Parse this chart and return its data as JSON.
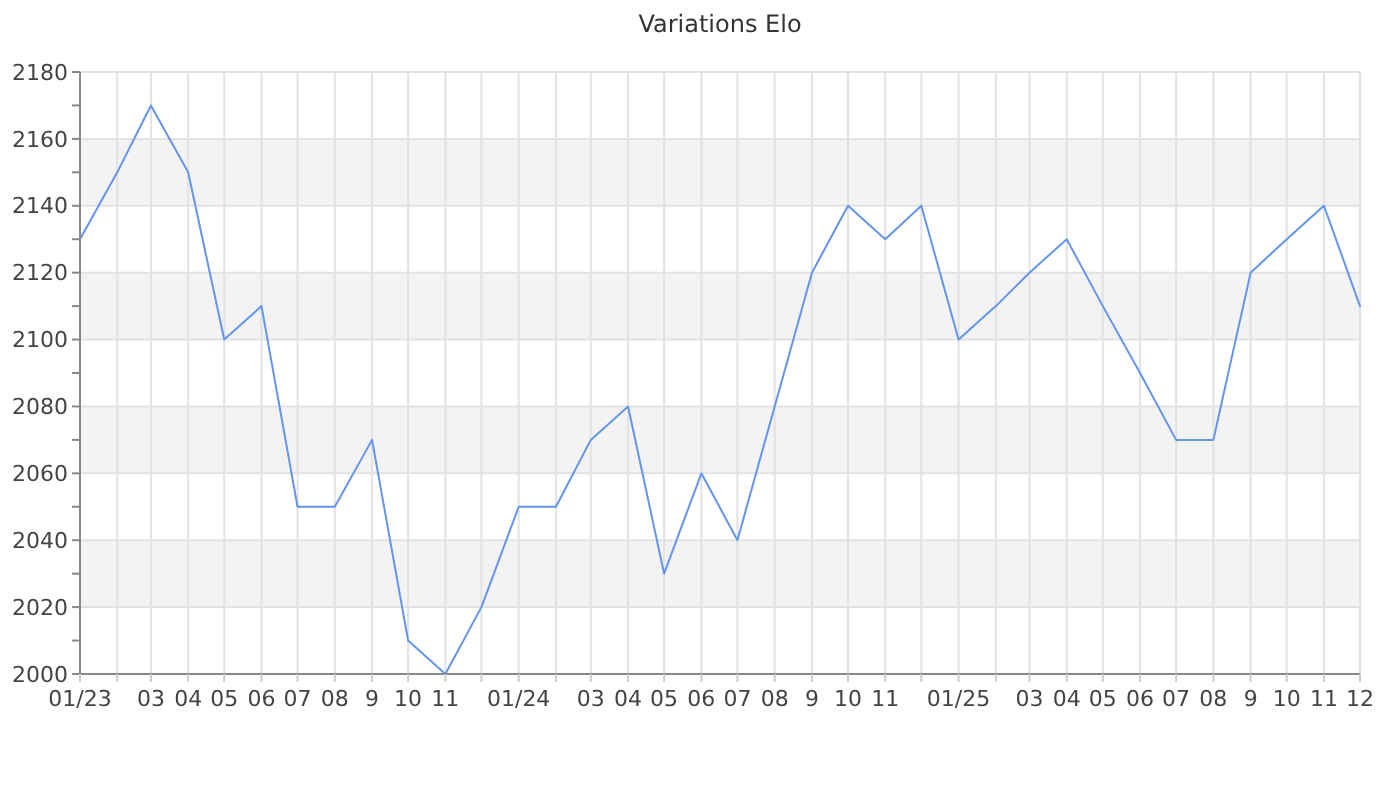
{
  "chart_data": {
    "type": "line",
    "title": "Variations Elo",
    "x": [
      "2023-01",
      "2023-02",
      "2023-03",
      "2023-04",
      "2023-05",
      "2023-06",
      "2023-07",
      "2023-08",
      "2023-09",
      "2023-10",
      "2023-11",
      "2023-12",
      "2024-01",
      "2024-02",
      "2024-03",
      "2024-04",
      "2024-05",
      "2024-06",
      "2024-07",
      "2024-08",
      "2024-09",
      "2024-10",
      "2024-11",
      "2024-12",
      "2025-01",
      "2025-02",
      "2025-03",
      "2025-04",
      "2025-05",
      "2025-06",
      "2025-07",
      "2025-08",
      "2025-09",
      "2025-10",
      "2025-11",
      "2025-12"
    ],
    "series": [
      {
        "color": "#6495ed",
        "values": [
          2130,
          2150,
          2170,
          2150,
          2100,
          2110,
          2050,
          2050,
          2070,
          2010,
          2000,
          2020,
          2050,
          2050,
          2070,
          2080,
          2030,
          2060,
          2040,
          2080,
          2120,
          2140,
          2130,
          2140,
          2100,
          2110,
          2120,
          2130,
          2110,
          2090,
          2070,
          2070,
          2120,
          2130,
          2140,
          2110
        ]
      }
    ],
    "xlim": [
      "2023-01",
      "2025-12"
    ],
    "xticks": [
      {
        "value": "2023-01",
        "label": "01/23"
      },
      {
        "value": "2023-02",
        "label": null
      },
      {
        "value": "2023-03",
        "label": "03"
      },
      {
        "value": "2023-04",
        "label": "04"
      },
      {
        "value": "2023-05",
        "label": "05"
      },
      {
        "value": "2023-06",
        "label": "06"
      },
      {
        "value": "2023-07",
        "label": "07"
      },
      {
        "value": "2023-08",
        "label": "08"
      },
      {
        "value": "2023-09",
        "label": "9"
      },
      {
        "value": "2023-10",
        "label": "10"
      },
      {
        "value": "2023-11",
        "label": "11"
      },
      {
        "value": "2023-12",
        "label": null
      },
      {
        "value": "2024-01",
        "label": "01/24"
      },
      {
        "value": "2024-02",
        "label": null
      },
      {
        "value": "2024-03",
        "label": "03"
      },
      {
        "value": "2024-04",
        "label": "04"
      },
      {
        "value": "2024-05",
        "label": "05"
      },
      {
        "value": "2024-06",
        "label": "06"
      },
      {
        "value": "2024-07",
        "label": "07"
      },
      {
        "value": "2024-08",
        "label": "08"
      },
      {
        "value": "2024-09",
        "label": "9"
      },
      {
        "value": "2024-10",
        "label": "10"
      },
      {
        "value": "2024-11",
        "label": "11"
      },
      {
        "value": "2024-12",
        "label": null
      },
      {
        "value": "2025-01",
        "label": "01/25"
      },
      {
        "value": "2025-02",
        "label": null
      },
      {
        "value": "2025-03",
        "label": "03"
      },
      {
        "value": "2025-04",
        "label": "04"
      },
      {
        "value": "2025-05",
        "label": "05"
      },
      {
        "value": "2025-06",
        "label": "06"
      },
      {
        "value": "2025-07",
        "label": "07"
      },
      {
        "value": "2025-08",
        "label": "08"
      },
      {
        "value": "2025-09",
        "label": "9"
      },
      {
        "value": "2025-10",
        "label": "10"
      },
      {
        "value": "2025-11",
        "label": "11"
      },
      {
        "value": "2025-12",
        "label": "12"
      }
    ],
    "ylim": [
      2000,
      2180
    ],
    "yticks": [
      2000,
      {
        "value": 2010,
        "label": null
      },
      2020,
      {
        "value": 2030,
        "label": null
      },
      2040,
      {
        "value": 2050,
        "label": null
      },
      2060,
      {
        "value": 2070,
        "label": null
      },
      2080,
      {
        "value": 2090,
        "label": null
      },
      2100,
      {
        "value": 2110,
        "label": null
      },
      2120,
      {
        "value": 2130,
        "label": null
      },
      2140,
      {
        "value": 2150,
        "label": null
      },
      2160,
      {
        "value": 2170,
        "label": null
      },
      2180
    ],
    "bands": [
      {
        "axis": "y",
        "from": 2020,
        "to": 2040,
        "color": "#f3f3f3"
      },
      {
        "axis": "y",
        "from": 2060,
        "to": 2080,
        "color": "#f3f3f3"
      },
      {
        "axis": "y",
        "from": 2100,
        "to": 2120,
        "color": "#f3f3f3"
      },
      {
        "axis": "y",
        "from": 2140,
        "to": 2160,
        "color": "#f3f3f3"
      }
    ],
    "grid": true,
    "marker": "none",
    "line_style": "solid"
  }
}
